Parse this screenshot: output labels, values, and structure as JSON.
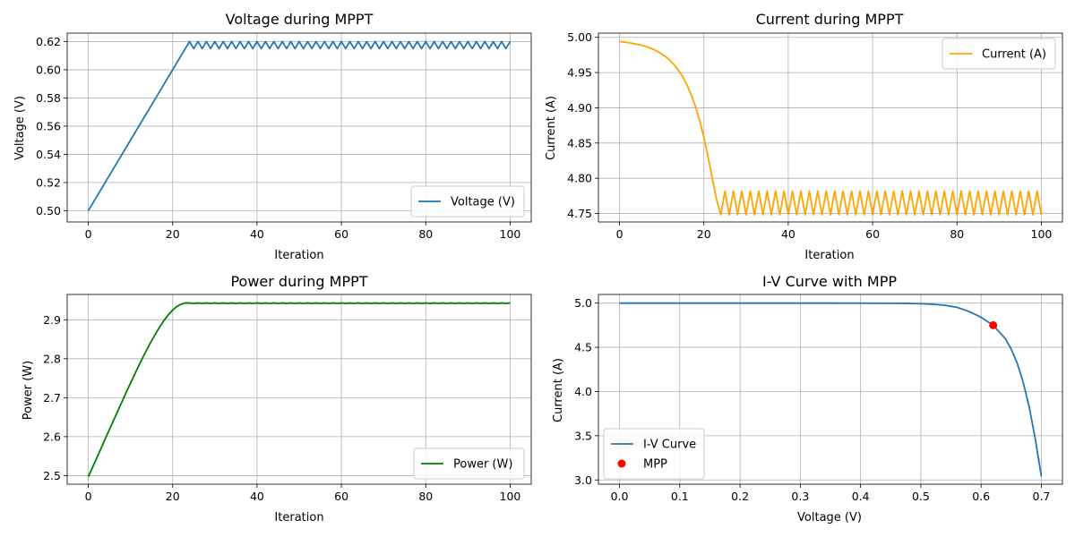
{
  "chart_data": [
    {
      "type": "line",
      "title": "Voltage during MPPT",
      "xlabel": "Iteration",
      "ylabel": "Voltage (V)",
      "xlim": [
        -5,
        105
      ],
      "ylim": [
        0.492,
        0.626
      ],
      "xticks": [
        0,
        20,
        40,
        60,
        80,
        100
      ],
      "yticks": [
        0.5,
        0.52,
        0.54,
        0.56,
        0.58,
        0.6,
        0.62
      ],
      "ytick_labels": [
        "0.50",
        "0.52",
        "0.54",
        "0.56",
        "0.58",
        "0.60",
        "0.62"
      ],
      "grid": true,
      "legend": "bottom-right",
      "series": [
        {
          "name": "Voltage (V)",
          "color": "#1f77b4",
          "x": [
            0,
            1,
            2,
            3,
            4,
            5,
            6,
            7,
            8,
            9,
            10,
            11,
            12,
            13,
            14,
            15,
            16,
            17,
            18,
            19,
            20,
            21,
            22,
            23,
            24,
            25,
            26,
            27,
            28,
            29,
            30,
            31,
            32,
            33,
            34,
            35,
            36,
            37,
            38,
            39,
            40,
            41,
            42,
            43,
            44,
            45,
            46,
            47,
            48,
            49,
            50,
            51,
            52,
            53,
            54,
            55,
            56,
            57,
            58,
            59,
            60,
            61,
            62,
            63,
            64,
            65,
            66,
            67,
            68,
            69,
            70,
            71,
            72,
            73,
            74,
            75,
            76,
            77,
            78,
            79,
            80,
            81,
            82,
            83,
            84,
            85,
            86,
            87,
            88,
            89,
            90,
            91,
            92,
            93,
            94,
            95,
            96,
            97,
            98,
            99,
            100
          ],
          "y": [
            0.5,
            0.505,
            0.51,
            0.515,
            0.52,
            0.525,
            0.53,
            0.535,
            0.54,
            0.545,
            0.55,
            0.555,
            0.56,
            0.565,
            0.57,
            0.575,
            0.58,
            0.585,
            0.59,
            0.595,
            0.6,
            0.605,
            0.61,
            0.615,
            0.62,
            0.615,
            0.62,
            0.615,
            0.62,
            0.615,
            0.62,
            0.615,
            0.62,
            0.615,
            0.62,
            0.615,
            0.62,
            0.615,
            0.62,
            0.615,
            0.62,
            0.615,
            0.62,
            0.615,
            0.62,
            0.615,
            0.62,
            0.615,
            0.62,
            0.615,
            0.62,
            0.615,
            0.62,
            0.615,
            0.62,
            0.615,
            0.62,
            0.615,
            0.62,
            0.615,
            0.62,
            0.615,
            0.62,
            0.615,
            0.62,
            0.615,
            0.62,
            0.615,
            0.62,
            0.615,
            0.62,
            0.615,
            0.62,
            0.615,
            0.62,
            0.615,
            0.62,
            0.615,
            0.62,
            0.615,
            0.62,
            0.615,
            0.62,
            0.615,
            0.62,
            0.615,
            0.62,
            0.615,
            0.62,
            0.615,
            0.62,
            0.615,
            0.62,
            0.615,
            0.62,
            0.615,
            0.62,
            0.615,
            0.62,
            0.615,
            0.62
          ]
        }
      ]
    },
    {
      "type": "line",
      "title": "Current during MPPT",
      "xlabel": "Iteration",
      "ylabel": "Current (A)",
      "xlim": [
        -5,
        105
      ],
      "ylim": [
        4.738,
        5.006
      ],
      "xticks": [
        0,
        20,
        40,
        60,
        80,
        100
      ],
      "yticks": [
        4.75,
        4.8,
        4.85,
        4.9,
        4.95,
        5.0
      ],
      "ytick_labels": [
        "4.75",
        "4.80",
        "4.85",
        "4.90",
        "4.95",
        "5.00"
      ],
      "grid": true,
      "legend": "top-right",
      "series": [
        {
          "name": "Current (A)",
          "color": "#ffa500",
          "x": [
            0,
            1,
            2,
            3,
            4,
            5,
            6,
            7,
            8,
            9,
            10,
            11,
            12,
            13,
            14,
            15,
            16,
            17,
            18,
            19,
            20,
            21,
            22,
            23,
            24,
            25,
            26,
            27,
            28,
            29,
            30,
            31,
            32,
            33,
            34,
            35,
            36,
            37,
            38,
            39,
            40,
            41,
            42,
            43,
            44,
            45,
            46,
            47,
            48,
            49,
            50,
            51,
            52,
            53,
            54,
            55,
            56,
            57,
            58,
            59,
            60,
            61,
            62,
            63,
            64,
            65,
            66,
            67,
            68,
            69,
            70,
            71,
            72,
            73,
            74,
            75,
            76,
            77,
            78,
            79,
            80,
            81,
            82,
            83,
            84,
            85,
            86,
            87,
            88,
            89,
            90,
            91,
            92,
            93,
            94,
            95,
            96,
            97,
            98,
            99,
            100
          ],
          "y": [
            4.994,
            4.9933,
            4.9925,
            4.9916,
            4.9905,
            4.9891,
            4.9875,
            4.9855,
            4.983,
            4.98,
            4.9765,
            4.9722,
            4.967,
            4.9607,
            4.953,
            4.944,
            4.9325,
            4.9185,
            4.902,
            4.882,
            4.858,
            4.83,
            4.8,
            4.77,
            4.748,
            4.782,
            4.748,
            4.782,
            4.748,
            4.782,
            4.748,
            4.782,
            4.748,
            4.782,
            4.748,
            4.782,
            4.748,
            4.782,
            4.748,
            4.782,
            4.748,
            4.782,
            4.748,
            4.782,
            4.748,
            4.782,
            4.748,
            4.782,
            4.748,
            4.782,
            4.748,
            4.782,
            4.748,
            4.782,
            4.748,
            4.782,
            4.748,
            4.782,
            4.748,
            4.782,
            4.748,
            4.782,
            4.748,
            4.782,
            4.748,
            4.782,
            4.748,
            4.782,
            4.748,
            4.782,
            4.748,
            4.782,
            4.748,
            4.782,
            4.748,
            4.782,
            4.748,
            4.782,
            4.748,
            4.782,
            4.748,
            4.782,
            4.748,
            4.782,
            4.748,
            4.782,
            4.748,
            4.782,
            4.748,
            4.782,
            4.748,
            4.782,
            4.748,
            4.782,
            4.748,
            4.782,
            4.748,
            4.782,
            4.748,
            4.782,
            4.748
          ]
        }
      ]
    },
    {
      "type": "line",
      "title": "Power during MPPT",
      "xlabel": "Iteration",
      "ylabel": "Power (W)",
      "xlim": [
        -5,
        105
      ],
      "ylim": [
        2.478,
        2.965
      ],
      "xticks": [
        0,
        20,
        40,
        60,
        80,
        100
      ],
      "yticks": [
        2.5,
        2.6,
        2.7,
        2.8,
        2.9
      ],
      "ytick_labels": [
        "2.5",
        "2.6",
        "2.7",
        "2.8",
        "2.9"
      ],
      "grid": true,
      "legend": "bottom-right",
      "series": [
        {
          "name": "Power (W)",
          "color": "#008000",
          "x": [
            0,
            1,
            2,
            3,
            4,
            5,
            6,
            7,
            8,
            9,
            10,
            11,
            12,
            13,
            14,
            15,
            16,
            17,
            18,
            19,
            20,
            21,
            22,
            23,
            24,
            25,
            26,
            27,
            28,
            29,
            30,
            31,
            32,
            33,
            34,
            35,
            36,
            37,
            38,
            39,
            40,
            41,
            42,
            43,
            44,
            45,
            46,
            47,
            48,
            49,
            50,
            51,
            52,
            53,
            54,
            55,
            56,
            57,
            58,
            59,
            60,
            61,
            62,
            63,
            64,
            65,
            66,
            67,
            68,
            69,
            70,
            71,
            72,
            73,
            74,
            75,
            76,
            77,
            78,
            79,
            80,
            81,
            82,
            83,
            84,
            85,
            86,
            87,
            88,
            89,
            90,
            91,
            92,
            93,
            94,
            95,
            96,
            97,
            98,
            99,
            100
          ],
          "y": [
            2.497,
            2.521,
            2.545,
            2.569,
            2.594,
            2.618,
            2.642,
            2.666,
            2.69,
            2.714,
            2.737,
            2.76,
            2.783,
            2.805,
            2.826,
            2.846,
            2.865,
            2.883,
            2.899,
            2.913,
            2.925,
            2.934,
            2.94,
            2.943,
            2.943,
            2.942,
            2.943,
            2.942,
            2.943,
            2.942,
            2.943,
            2.942,
            2.943,
            2.942,
            2.943,
            2.942,
            2.943,
            2.942,
            2.943,
            2.942,
            2.943,
            2.942,
            2.943,
            2.942,
            2.943,
            2.942,
            2.943,
            2.942,
            2.943,
            2.942,
            2.943,
            2.942,
            2.943,
            2.942,
            2.943,
            2.942,
            2.943,
            2.942,
            2.943,
            2.942,
            2.943,
            2.942,
            2.943,
            2.942,
            2.943,
            2.942,
            2.943,
            2.942,
            2.943,
            2.942,
            2.943,
            2.942,
            2.943,
            2.942,
            2.943,
            2.942,
            2.943,
            2.942,
            2.943,
            2.942,
            2.943,
            2.942,
            2.943,
            2.942,
            2.943,
            2.942,
            2.943,
            2.942,
            2.943,
            2.942,
            2.943,
            2.942,
            2.943,
            2.942,
            2.943,
            2.942,
            2.943,
            2.942,
            2.943,
            2.942,
            2.943
          ]
        }
      ]
    },
    {
      "type": "line",
      "title": "I-V Curve with MPP",
      "xlabel": "Voltage (V)",
      "ylabel": "Current (A)",
      "xlim": [
        -0.035,
        0.735
      ],
      "ylim": [
        2.952,
        5.098
      ],
      "xticks": [
        0.0,
        0.1,
        0.2,
        0.3,
        0.4,
        0.5,
        0.6,
        0.7
      ],
      "xtick_labels": [
        "0.0",
        "0.1",
        "0.2",
        "0.3",
        "0.4",
        "0.5",
        "0.6",
        "0.7"
      ],
      "yticks": [
        3.0,
        3.5,
        4.0,
        4.5,
        5.0
      ],
      "ytick_labels": [
        "3.0",
        "3.5",
        "4.0",
        "4.5",
        "5.0"
      ],
      "grid": true,
      "legend": "bottom-left",
      "series": [
        {
          "name": "I-V Curve",
          "color": "#1f77b4",
          "x": [
            0.0,
            0.05,
            0.1,
            0.15,
            0.2,
            0.25,
            0.3,
            0.35,
            0.4,
            0.45,
            0.48,
            0.5,
            0.52,
            0.54,
            0.56,
            0.58,
            0.6,
            0.62,
            0.64,
            0.65,
            0.66,
            0.67,
            0.68,
            0.69,
            0.7
          ],
          "y": [
            5.0,
            5.0,
            5.0,
            5.0,
            5.0,
            5.0,
            5.0,
            5.0,
            4.999,
            4.998,
            4.996,
            4.993,
            4.987,
            4.975,
            4.952,
            4.905,
            4.84,
            4.75,
            4.6,
            4.48,
            4.32,
            4.1,
            3.82,
            3.46,
            3.04
          ]
        },
        {
          "name": "MPP",
          "color": "#ff0000",
          "marker": true,
          "x": [
            0.62
          ],
          "y": [
            4.75
          ]
        }
      ]
    }
  ]
}
